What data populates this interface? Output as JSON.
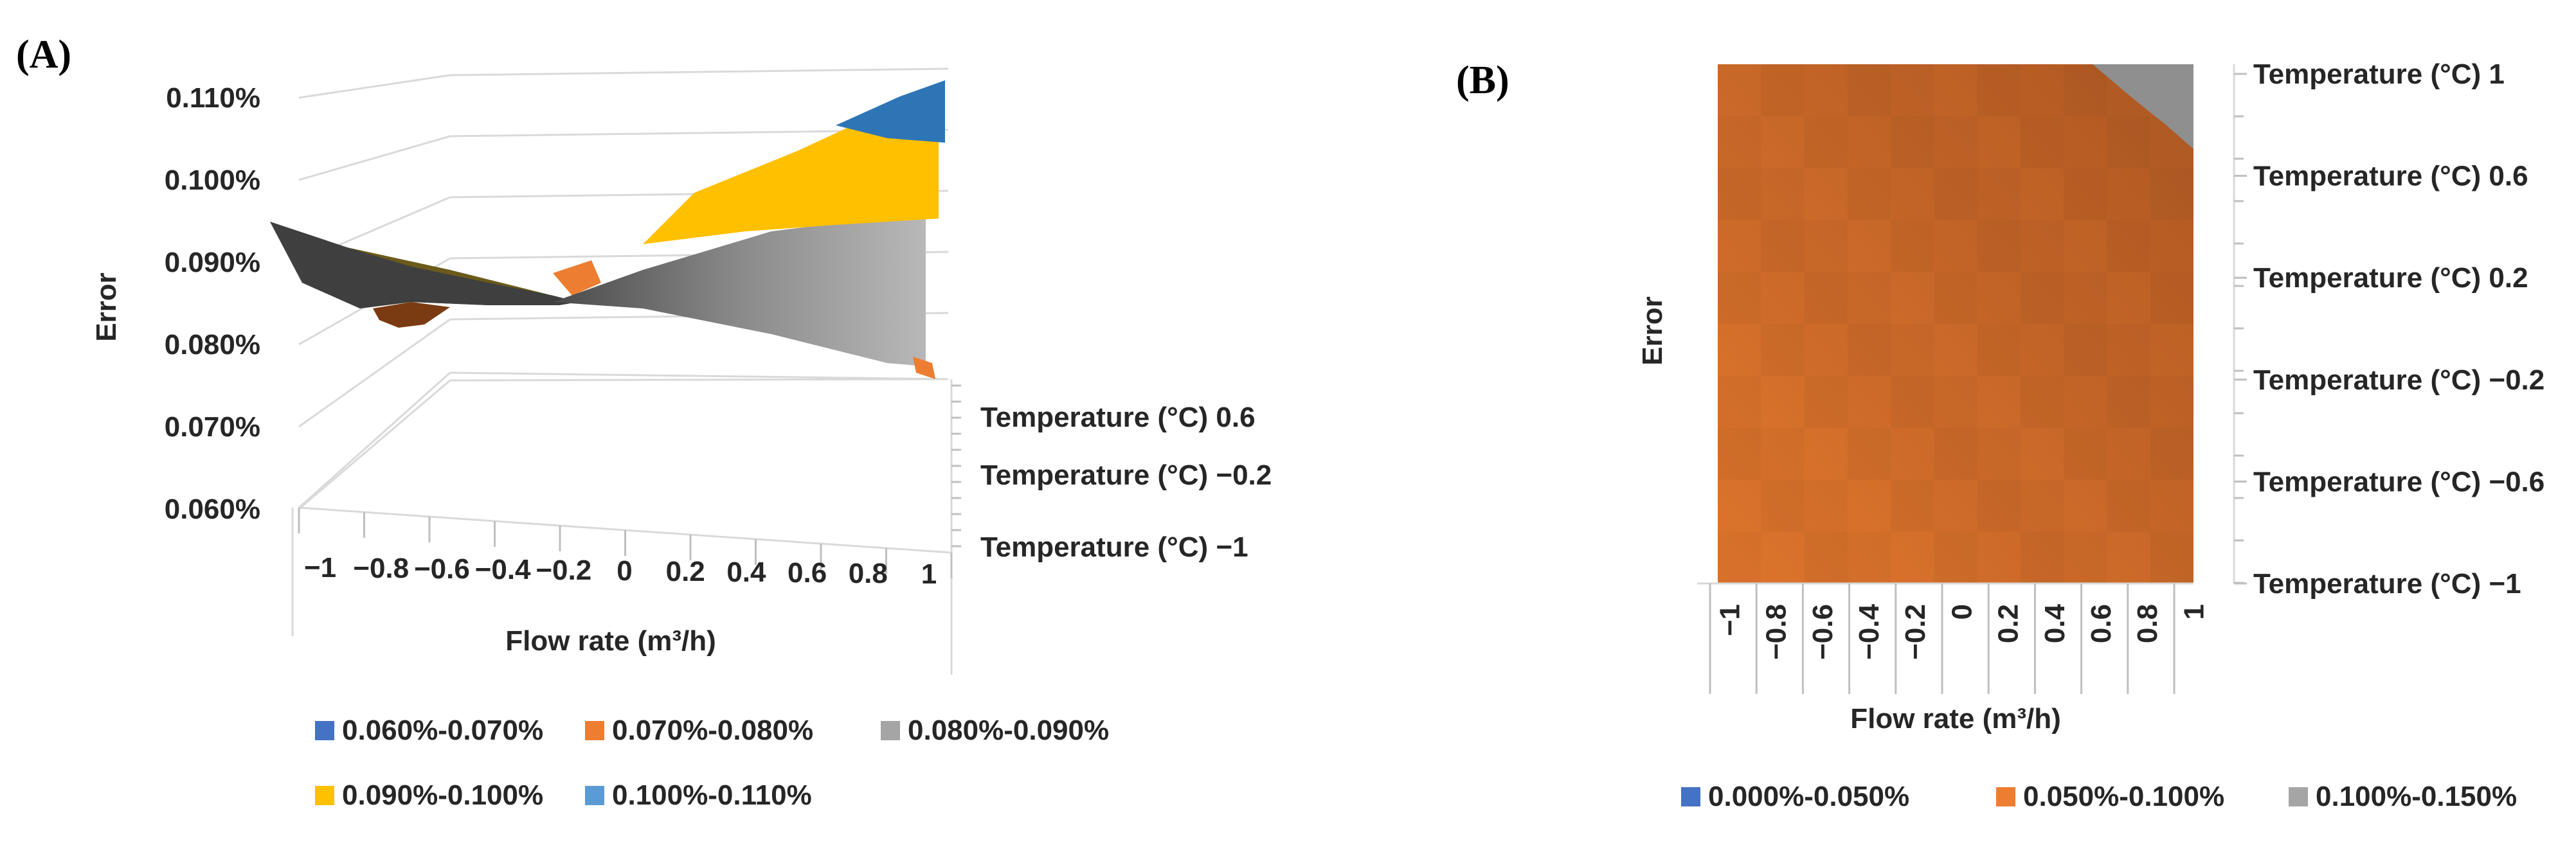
{
  "panel_a": {
    "label": "(A)"
  },
  "panel_b": {
    "label": "(B)"
  },
  "chart_data": [
    {
      "type": "surface",
      "title": "",
      "xlabel": "Flow rate (m³/h)",
      "ylabel": "Error",
      "x_ticks": [
        "−1",
        "−0.8",
        "−0.6",
        "−0.4",
        "−0.2",
        "0",
        "0.2",
        "0.4",
        "0.6",
        "0.8",
        "1"
      ],
      "depth_ticks": [
        "Temperature (°C) 0.6",
        "Temperature (°C) −0.2",
        "Temperature (°C) −1"
      ],
      "z_ticks": [
        "0.060%",
        "0.070%",
        "0.080%",
        "0.090%",
        "0.100%",
        "0.110%"
      ],
      "zlim": [
        0.06,
        0.11
      ],
      "bands": [
        {
          "label": "0.060%-0.070%",
          "color": "#4472c4"
        },
        {
          "label": "0.070%-0.080%",
          "color": "#ed7d31"
        },
        {
          "label": "0.080%-0.090%",
          "color": "#a5a5a5"
        },
        {
          "label": "0.090%-0.100%",
          "color": "#ffc000"
        },
        {
          "label": "0.100%-0.110%",
          "color": "#5b9bd5"
        }
      ],
      "legend_position": "bottom",
      "surface_front_edge": {
        "x": [
          -1,
          -0.8,
          -0.6,
          -0.4,
          -0.2,
          0,
          0.2,
          0.4,
          0.6,
          0.8,
          1
        ],
        "error_percent": [
          0.085,
          0.084,
          0.0845,
          0.0855,
          0.086,
          0.0865,
          0.087,
          0.086,
          0.0845,
          0.083,
          0.078
        ]
      },
      "surface_back_edge": {
        "x": [
          -1,
          -0.8,
          -0.6,
          -0.4,
          -0.2,
          0,
          0.2,
          0.4,
          0.6,
          0.8,
          1
        ],
        "error_percent": [
          0.094,
          0.092,
          0.091,
          0.0895,
          0.088,
          0.088,
          0.0905,
          0.095,
          0.1,
          0.105,
          0.11
        ]
      }
    },
    {
      "type": "heatmap",
      "title": "",
      "xlabel": "Flow rate (m³/h)",
      "ylabel": "Error",
      "x_ticks": [
        "−1",
        "−0.8",
        "−0.6",
        "−0.4",
        "−0.2",
        "0",
        "0.2",
        "0.4",
        "0.6",
        "0.8",
        "1"
      ],
      "y_ticks": [
        "Temperature (°C) 1",
        "Temperature (°C) 0.6",
        "Temperature (°C) 0.2",
        "Temperature (°C) −0.2",
        "Temperature (°C) −0.6",
        "Temperature (°C) −1"
      ],
      "bands": [
        {
          "label": "0.000%-0.050%",
          "color": "#4472c4"
        },
        {
          "label": "0.050%-0.100%",
          "color": "#ed7d31"
        },
        {
          "label": "0.100%-0.150%",
          "color": "#a5a5a5"
        }
      ],
      "legend_position": "bottom",
      "high_band_region": "top-right corner (flow rate ≈ 0.8–1, temperature ≈ 0.6–1)"
    }
  ]
}
